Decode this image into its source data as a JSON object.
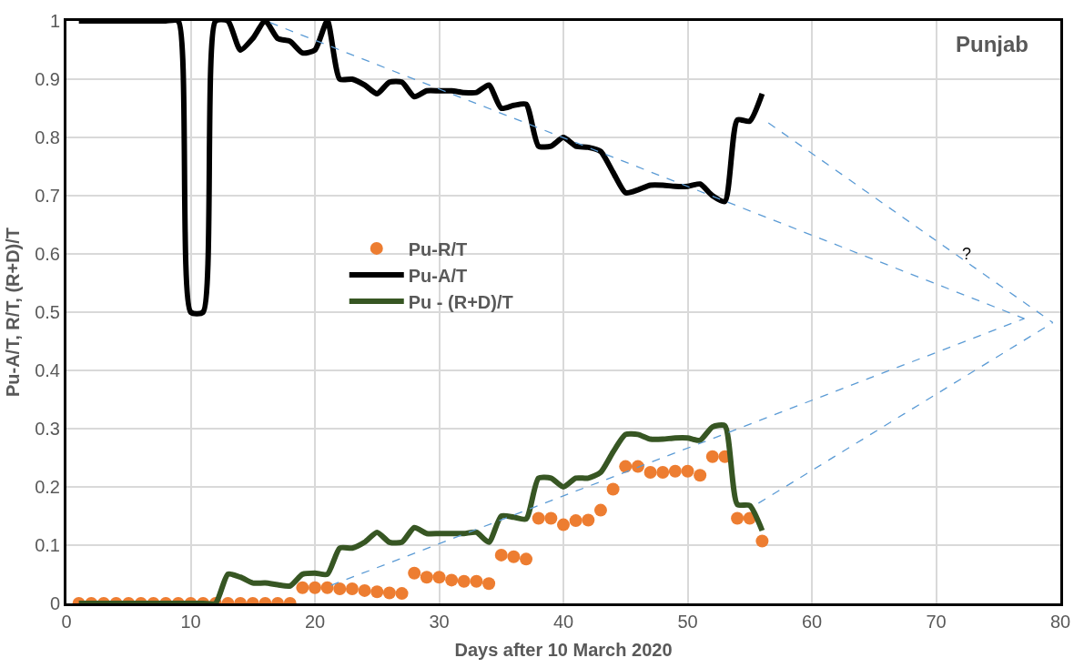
{
  "chart_data": {
    "type": "line",
    "xlabel": "Days after 10 March 2020",
    "ylabel": "Pu-A/T, R/T, (R+D)/T",
    "x": [
      1,
      2,
      3,
      4,
      5,
      6,
      7,
      8,
      9,
      10,
      11,
      12,
      13,
      14,
      15,
      16,
      17,
      18,
      19,
      20,
      21,
      22,
      23,
      24,
      25,
      26,
      27,
      28,
      29,
      30,
      31,
      32,
      33,
      34,
      35,
      36,
      37,
      38,
      39,
      40,
      41,
      42,
      43,
      44,
      45,
      46,
      47,
      48,
      49,
      50,
      51,
      52,
      53,
      54,
      55,
      56
    ],
    "series": [
      {
        "name": "Pu-R/T",
        "type": "scatter",
        "marker": "circle",
        "color": "#ed7d31",
        "values": [
          0,
          0,
          0,
          0,
          0,
          0,
          0,
          0,
          0,
          0,
          0,
          0,
          0,
          0,
          0,
          0,
          0,
          0,
          0.027,
          0.027,
          0.027,
          0.025,
          0.025,
          0.022,
          0.02,
          0.018,
          0.017,
          0.052,
          0.045,
          0.045,
          0.04,
          0.038,
          0.038,
          0.034,
          0.083,
          0.08,
          0.076,
          0.146,
          0.146,
          0.135,
          0.142,
          0.143,
          0.16,
          0.196,
          0.235,
          0.235,
          0.225,
          0.225,
          0.227,
          0.227,
          0.22,
          0.252,
          0.252,
          0.146,
          0.146,
          0.107
        ]
      },
      {
        "name": "Pu-A/T",
        "color": "#000000",
        "values": [
          1,
          1,
          1,
          1,
          1,
          1,
          1,
          1,
          1,
          0.5,
          0.5,
          1,
          1,
          0.95,
          0.97,
          1,
          0.97,
          0.965,
          0.945,
          0.95,
          1,
          0.9,
          0.9,
          0.89,
          0.875,
          0.895,
          0.895,
          0.87,
          0.88,
          0.88,
          0.88,
          0.877,
          0.877,
          0.89,
          0.85,
          0.855,
          0.857,
          0.785,
          0.785,
          0.8,
          0.785,
          0.783,
          0.776,
          0.74,
          0.705,
          0.71,
          0.718,
          0.718,
          0.716,
          0.716,
          0.72,
          0.7,
          0.69,
          0.83,
          0.828,
          0.875
        ]
      },
      {
        "name": "Pu - (R+D)/T",
        "color": "#375623",
        "values": [
          0,
          0,
          0,
          0,
          0,
          0,
          0,
          0,
          0,
          0,
          0,
          0,
          0.05,
          0.045,
          0.035,
          0.035,
          0.032,
          0.03,
          0.05,
          0.052,
          0.05,
          0.095,
          0.095,
          0.105,
          0.122,
          0.105,
          0.105,
          0.13,
          0.12,
          0.12,
          0.12,
          0.12,
          0.122,
          0.105,
          0.15,
          0.148,
          0.145,
          0.215,
          0.215,
          0.2,
          0.215,
          0.215,
          0.225,
          0.26,
          0.29,
          0.29,
          0.282,
          0.282,
          0.284,
          0.284,
          0.28,
          0.303,
          0.305,
          0.17,
          0.168,
          0.125
        ]
      },
      {
        "line_style": "dashed",
        "color": "#5b9bd5",
        "x": [
          16.4,
          77.1
        ],
        "values": [
          0.997,
          0.489
        ]
      },
      {
        "line_style": "dashed",
        "color": "#5b9bd5",
        "x": [
          56.5,
          79.4
        ],
        "values": [
          0.825,
          0.482
        ]
      },
      {
        "line_style": "dashed",
        "color": "#5b9bd5",
        "x": [
          21.3,
          77.1
        ],
        "values": [
          0.031,
          0.489
        ]
      },
      {
        "line_style": "dashed",
        "color": "#5b9bd5",
        "x": [
          55.7,
          79.4
        ],
        "values": [
          0.172,
          0.482
        ]
      }
    ],
    "xlim": [
      0,
      80
    ],
    "xticks": [
      0,
      10,
      20,
      30,
      40,
      50,
      60,
      70,
      80
    ],
    "ylim": [
      0,
      1
    ],
    "yticks": [
      0,
      0.1,
      0.2,
      0.3,
      0.4,
      0.5,
      0.6,
      0.7,
      0.8,
      0.9,
      1
    ],
    "grid": true,
    "legend": "center left",
    "annotations": [
      "Punjab",
      "?"
    ]
  }
}
